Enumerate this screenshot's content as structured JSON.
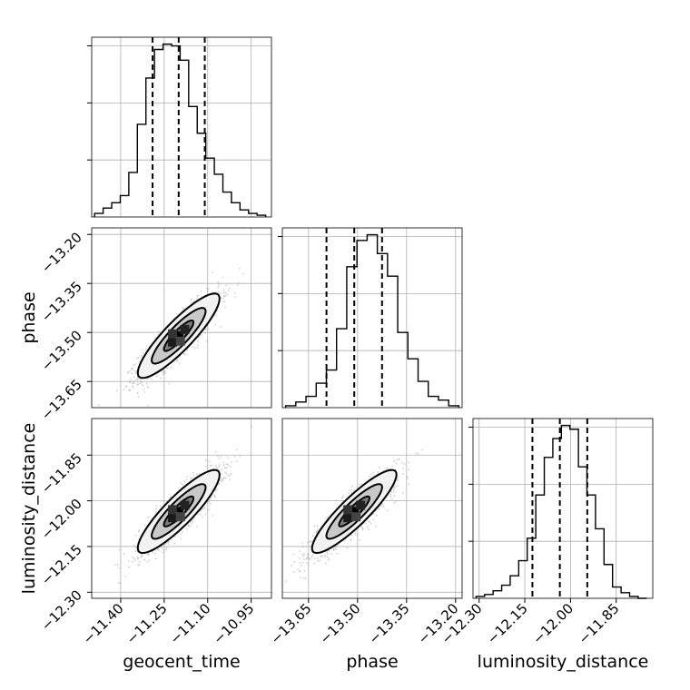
{
  "chart_data": {
    "type": "corner",
    "parameters": [
      "geocent_time",
      "phase",
      "luminosity_distance"
    ],
    "xlabels": [
      "geocent_time",
      "phase",
      "luminosity_distance"
    ],
    "ylabels": [
      "",
      "phase",
      "luminosity_distance"
    ],
    "ranges": {
      "geocent_time": [
        -11.5,
        -10.88
      ],
      "phase": [
        -13.73,
        -13.18
      ],
      "luminosity_distance": [
        -12.32,
        -11.73
      ]
    },
    "ticks": {
      "geocent_time": [
        "-11.40",
        "-11.25",
        "-11.10",
        "-10.95"
      ],
      "phase": [
        "-13.65",
        "-13.50",
        "-13.35",
        "-13.20"
      ],
      "luminosity_distance": [
        "-12.30",
        "-12.15",
        "-12.00",
        "-11.85"
      ]
    },
    "quantiles": {
      "geocent_time": [
        -11.29,
        -11.2,
        -11.11
      ],
      "phase": [
        -13.595,
        -13.51,
        -13.425
      ],
      "luminosity_distance": [
        -12.125,
        -12.035,
        -11.945
      ]
    },
    "histograms": {
      "geocent_time": {
        "edges_range": [
          -11.49,
          -10.9
        ],
        "counts": [
          2,
          5,
          8,
          12,
          25,
          52,
          78,
          94,
          97,
          96,
          88,
          62,
          47,
          33,
          24,
          14,
          8,
          4,
          2,
          1
        ]
      },
      "phase": {
        "edges_range": [
          -13.72,
          -13.19
        ],
        "counts": [
          1,
          3,
          6,
          13,
          20,
          42,
          75,
          89,
          92,
          82,
          70,
          40,
          26,
          14,
          6,
          4,
          1
        ]
      },
      "luminosity_distance": {
        "edges_range": [
          -12.31,
          -11.75
        ],
        "counts": [
          1,
          2,
          4,
          7,
          12,
          20,
          32,
          55,
          75,
          85,
          92,
          90,
          70,
          55,
          37,
          18,
          6,
          3,
          1,
          0
        ]
      }
    },
    "pairs": [
      {
        "x": "geocent_time",
        "y": "phase",
        "center": [
          -11.2,
          -13.51
        ],
        "sigma": [
          0.06,
          0.055
        ],
        "rho": 0.88
      },
      {
        "x": "geocent_time",
        "y": "luminosity_distance",
        "center": [
          -11.2,
          -12.035
        ],
        "sigma": [
          0.06,
          0.058
        ],
        "rho": 0.88
      },
      {
        "x": "phase",
        "y": "luminosity_distance",
        "center": [
          -13.51,
          -12.035
        ],
        "sigma": [
          0.055,
          0.058
        ],
        "rho": 0.89
      }
    ],
    "grid": true,
    "colors": {
      "line": "#000000",
      "grid": "#b0b0b0",
      "points": "#9a9a9a"
    }
  }
}
